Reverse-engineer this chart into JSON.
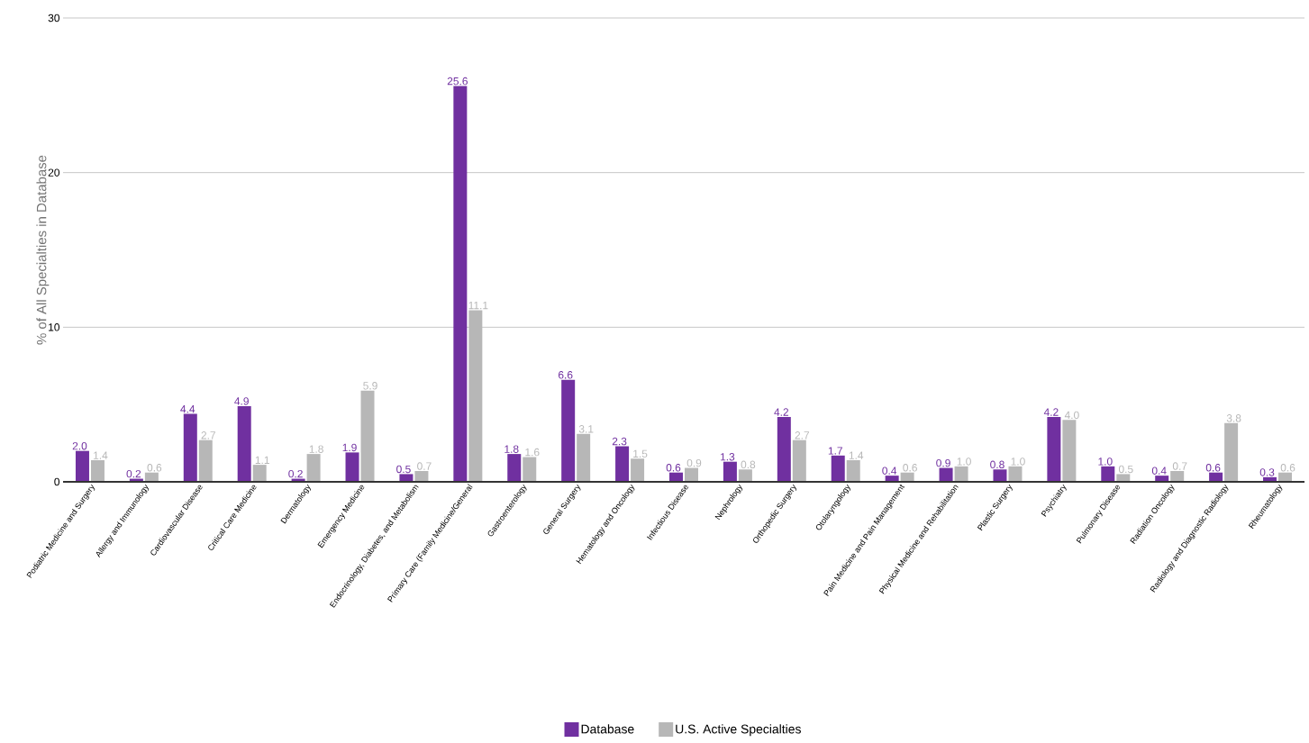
{
  "chart_data": {
    "type": "bar",
    "ylabel": "% of All Specialties in Database",
    "categories": [
      "Podiatric Medicine and Surgery",
      "Allergy and Immunology",
      "Cardiovascular Disease",
      "Critical Care Medicine",
      "Dermatology",
      "Emergency Medicine",
      "Endocrinology, Diabetes, and Metabolism",
      "Primary Care (Family Medicine/General",
      "Gastroenterology",
      "General Surgery",
      "Hematology and Oncology",
      "Infectious Disease",
      "Nephrology",
      "Orthopedic Surgery",
      "Otolaryngology",
      "Pain Medicine and Pain Management",
      "Physical Medicine and Rehabilitation",
      "Plastic Surgery",
      "Psychiatry",
      "Pulmonary Disease",
      "Radiation Oncology",
      "Radiology and Diagnostic Radiology",
      "Rheumatology"
    ],
    "series": [
      {
        "name": "Database",
        "color": "#7030a0",
        "values": [
          2.0,
          0.2,
          4.4,
          4.9,
          0.2,
          1.9,
          0.5,
          25.6,
          1.8,
          6.6,
          2.3,
          0.6,
          1.3,
          4.2,
          1.7,
          0.4,
          0.9,
          0.8,
          4.2,
          1.0,
          0.4,
          0.6,
          0.3
        ],
        "value_labels": [
          "2.0",
          "0.2",
          "4.4",
          "4.9",
          "0.2",
          "1.9",
          "0.5",
          "25.6",
          "1.8",
          "6.6",
          "2.3",
          "0.6",
          "1.3",
          "4.2",
          "1.7",
          "0.4",
          "0.9",
          "0.8",
          "4.2",
          "1.0",
          "0.4",
          "0.6",
          "0.3"
        ]
      },
      {
        "name": "U.S. Active Specialties",
        "color": "#b7b7b7",
        "values": [
          1.4,
          0.6,
          2.7,
          1.1,
          1.8,
          5.9,
          0.7,
          11.1,
          1.6,
          3.1,
          1.5,
          0.9,
          0.8,
          2.7,
          1.4,
          0.6,
          1.0,
          1.0,
          4.0,
          0.5,
          0.7,
          3.8,
          0.6
        ],
        "value_labels": [
          "1.4",
          "0.6",
          "2.7",
          "1.1",
          "1.8",
          "5.9",
          "0.7",
          "11.1",
          "1.6",
          "3.1",
          "1.5",
          "0.9",
          "0.8",
          "2.7",
          "1.4",
          "0.6",
          "1.0",
          "1.0",
          "4.0",
          "0.5",
          "0.7",
          "3.8",
          "0.6"
        ]
      }
    ],
    "ylim": [
      0,
      30
    ],
    "yticks": [
      0,
      10,
      20,
      30
    ],
    "grid": "y",
    "legend": "bottom"
  }
}
